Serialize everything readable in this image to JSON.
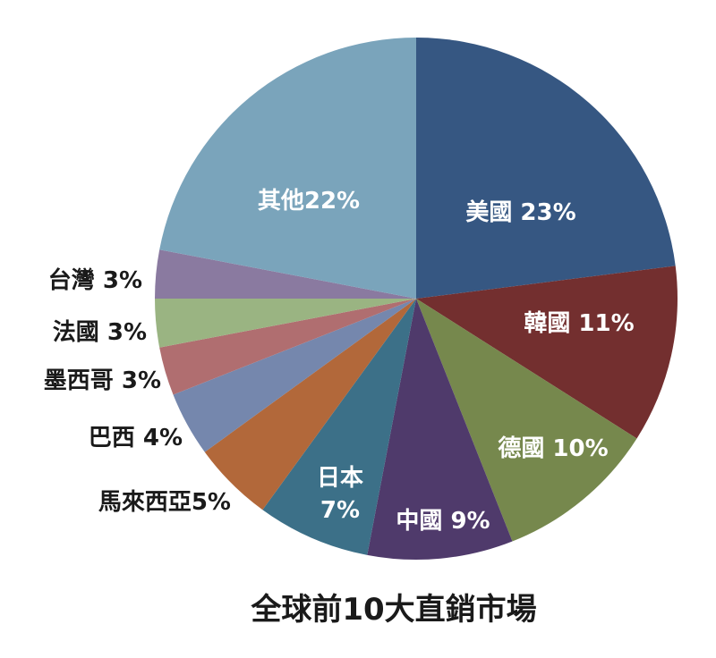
{
  "chart_data": {
    "type": "pie",
    "title": "全球前10大直銷市場",
    "slices": [
      {
        "label": "美國 23%",
        "value": 23,
        "color": "#365782"
      },
      {
        "label": "韓國 11%",
        "value": 11,
        "color": "#732f2f"
      },
      {
        "label": "德國 10%",
        "value": 10,
        "color": "#76884d"
      },
      {
        "label": "中國 9%",
        "value": 9,
        "color": "#4f3a6b"
      },
      {
        "label": "日本 7%",
        "lines": [
          "日本",
          "7%"
        ],
        "value": 7,
        "color": "#3c7088"
      },
      {
        "label": "馬來西亞5%",
        "value": 5,
        "color": "#b2683a"
      },
      {
        "label": "巴西 4%",
        "value": 4,
        "color": "#7587ad"
      },
      {
        "label": "墨西哥 3%",
        "value": 3,
        "color": "#b06e70"
      },
      {
        "label": "法國 3%",
        "value": 3,
        "color": "#9ab482"
      },
      {
        "label": "台灣 3%",
        "value": 3,
        "color": "#8a7aa0"
      },
      {
        "label": "其他22%",
        "value": 22,
        "color": "#7aa4bb"
      }
    ]
  }
}
